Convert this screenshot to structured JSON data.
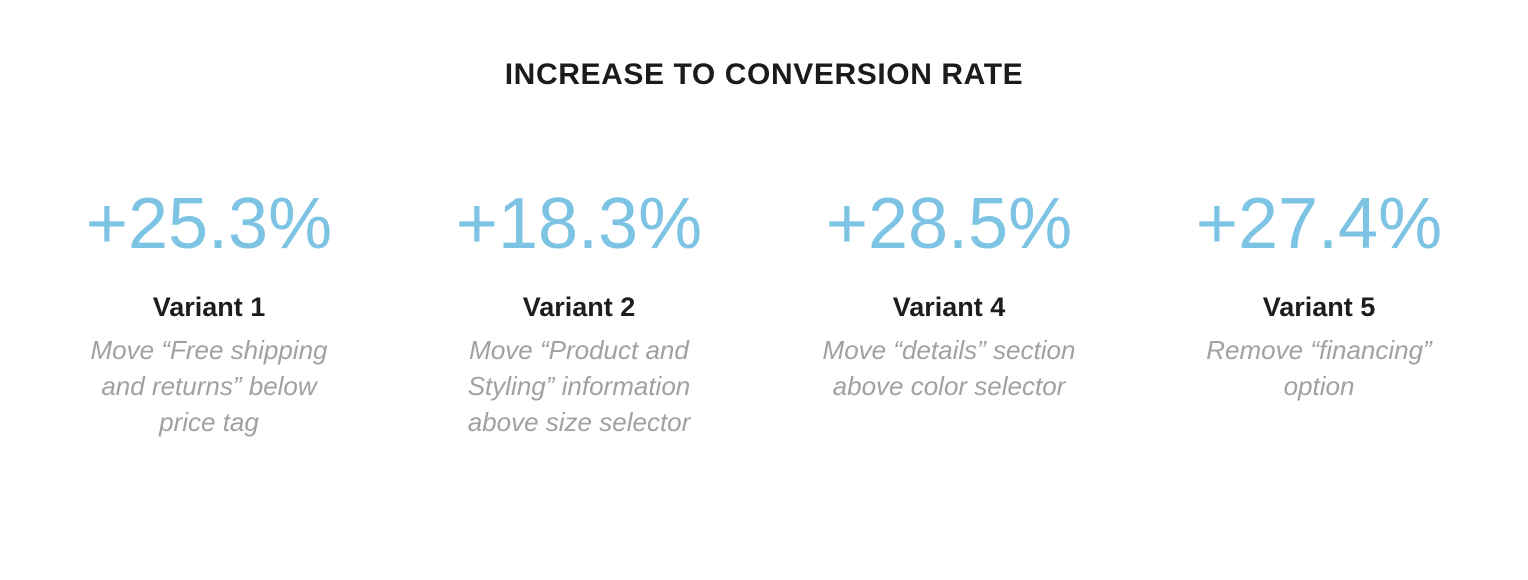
{
  "title": "INCREASE TO CONVERSION RATE",
  "colors": {
    "accent_blue": "#7dc3e3",
    "text_dark": "#1b1b1b",
    "text_gray": "#a1a1a1",
    "background": "#ffffff"
  },
  "metrics": [
    {
      "value": "+25.3%",
      "variant": "Variant 1",
      "description": "Move “Free shipping\nand returns” below\nprice tag"
    },
    {
      "value": "+18.3%",
      "variant": "Variant 2",
      "description": "Move “Product and\nStyling” information\nabove size selector"
    },
    {
      "value": "+28.5%",
      "variant": "Variant 4",
      "description": "Move “details” section\nabove color selector"
    },
    {
      "value": "+27.4%",
      "variant": "Variant 5",
      "description": "Remove “financing”\noption"
    }
  ],
  "chart_data": {
    "type": "table",
    "title": "INCREASE TO CONVERSION RATE",
    "categories": [
      "Variant 1",
      "Variant 2",
      "Variant 4",
      "Variant 5"
    ],
    "values": [
      25.3,
      18.3,
      28.5,
      27.4
    ],
    "unit": "%",
    "value_prefix": "+",
    "annotations": [
      "Move “Free shipping and returns” below price tag",
      "Move “Product and Styling” information above size selector",
      "Move “details” section above color selector",
      "Remove “financing” option"
    ],
    "legend_position": "none",
    "grid": false
  }
}
